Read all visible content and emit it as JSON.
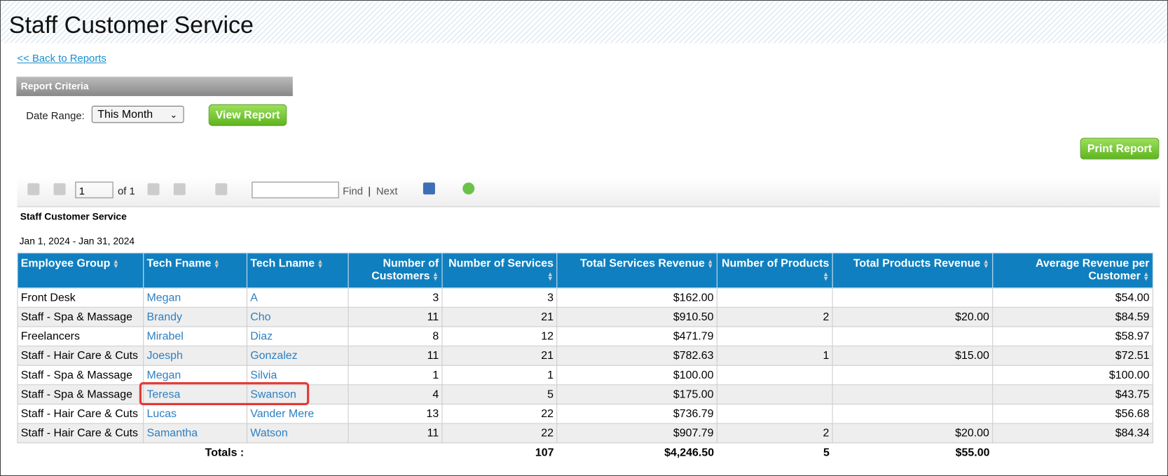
{
  "header": {
    "title": "Staff Customer Service",
    "back_link": "<< Back to Reports"
  },
  "criteria": {
    "title": "Report Criteria",
    "date_range_label": "Date Range:",
    "date_range_value": "This Month",
    "view_button": "View Report"
  },
  "print_button": "Print Report",
  "toolbar": {
    "page": "1",
    "of": "of 1",
    "find": "Find",
    "separator": "|",
    "next": "Next"
  },
  "report": {
    "title": "Staff Customer Service",
    "date_range": "Jan 1, 2024 - Jan 31, 2024"
  },
  "table": {
    "columns": [
      "Employee Group",
      "Tech Fname",
      "Tech Lname",
      "Number of Customers",
      "Number of Services",
      "Total Services Revenue",
      "Number of Products",
      "Total Products Revenue",
      "Average Revenue per Customer"
    ],
    "rows": [
      [
        "Front Desk",
        "Megan",
        "A",
        "3",
        "3",
        "$162.00",
        null,
        null,
        "$54.00"
      ],
      [
        "Staff - Spa & Massage",
        "Brandy",
        "Cho",
        "11",
        "21",
        "$910.50",
        "2",
        "$20.00",
        "$84.59"
      ],
      [
        "Freelancers",
        "Mirabel",
        "Diaz",
        "8",
        "12",
        "$471.79",
        null,
        null,
        "$58.97"
      ],
      [
        "Staff - Hair Care & Cuts",
        "Joesph",
        "Gonzalez",
        "11",
        "21",
        "$782.63",
        "1",
        "$15.00",
        "$72.51"
      ],
      [
        "Staff - Spa & Massage",
        "Megan",
        "Silvia",
        "1",
        "1",
        "$100.00",
        null,
        null,
        "$100.00"
      ],
      [
        "Staff - Spa & Massage",
        "Teresa",
        "Swanson",
        "4",
        "5",
        "$175.00",
        null,
        null,
        "$43.75"
      ],
      [
        "Staff - Hair Care & Cuts",
        "Lucas",
        "Vander Mere",
        "13",
        "22",
        "$736.79",
        null,
        null,
        "$56.68"
      ],
      [
        "Staff - Hair Care & Cuts",
        "Samantha",
        "Watson",
        "11",
        "22",
        "$907.79",
        "2",
        "$20.00",
        "$84.34"
      ]
    ],
    "totals": {
      "label": "Totals :",
      "services": "107",
      "services_revenue": "$4,246.50",
      "products": "5",
      "products_revenue": "$55.00"
    }
  }
}
